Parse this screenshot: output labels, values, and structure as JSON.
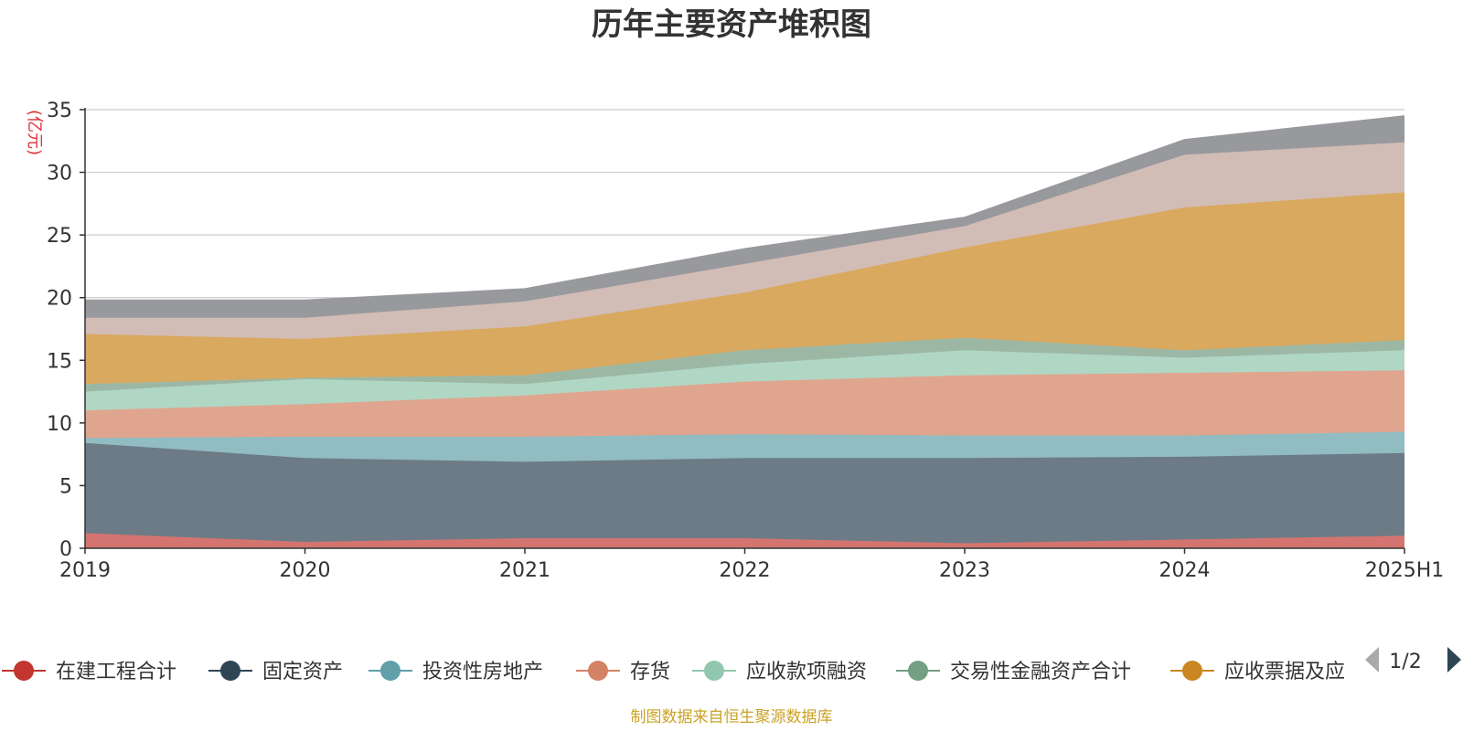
{
  "chart_data": {
    "type": "area",
    "stacked": true,
    "title": "历年主要资产堆积图",
    "unit_label": "(亿元)",
    "x": [
      "2019",
      "2020",
      "2021",
      "2022",
      "2023",
      "2024",
      "2025H1"
    ],
    "ylim": [
      0,
      35
    ],
    "yticks": [
      0,
      5,
      10,
      15,
      20,
      25,
      30,
      35
    ],
    "grid": true,
    "series": [
      {
        "name": "在建工程合计",
        "color": "#c23531",
        "area_color": "#d47470",
        "values": [
          1.2,
          0.5,
          0.8,
          0.8,
          0.4,
          0.7,
          1.0
        ]
      },
      {
        "name": "固定资产",
        "color": "#2f4554",
        "area_color": "#6d7b86",
        "values": [
          7.2,
          6.7,
          6.1,
          6.4,
          6.8,
          6.6,
          6.6
        ]
      },
      {
        "name": "投资性房地产",
        "color": "#61a0a8",
        "area_color": "#90bcc2",
        "values": [
          0.4,
          1.7,
          2.0,
          1.9,
          1.8,
          1.7,
          1.7
        ]
      },
      {
        "name": "存货",
        "color": "#d48265",
        "area_color": "#e0a58f",
        "values": [
          2.2,
          2.6,
          3.3,
          4.2,
          4.8,
          5.0,
          4.9
        ]
      },
      {
        "name": "应收款项融资",
        "color": "#91c7ae",
        "area_color": "#b0d7c4",
        "values": [
          1.5,
          2.0,
          0.9,
          1.4,
          2.0,
          1.2,
          1.6
        ]
      },
      {
        "name": "交易性金融资产合计",
        "color": "#749f83",
        "area_color": "#9cb8a5",
        "values": [
          0.6,
          0.1,
          0.7,
          1.1,
          1.0,
          0.6,
          0.8
        ]
      },
      {
        "name": "应收票据及应",
        "color": "#ca8622",
        "area_color": "#d9a95f",
        "values": [
          4.0,
          3.1,
          3.9,
          4.6,
          7.2,
          11.4,
          11.8
        ]
      },
      {
        "name": "",
        "color": "#bda29a",
        "area_color": "#d2bcb6",
        "values": [
          1.3,
          1.7,
          2.0,
          2.3,
          1.7,
          4.2,
          4.0
        ]
      },
      {
        "name": "",
        "color": "#6e7074",
        "area_color": "#98999d",
        "values": [
          1.4,
          1.4,
          1.0,
          1.2,
          0.7,
          1.2,
          2.1
        ]
      }
    ]
  },
  "legend": {
    "pager_text": "1/2"
  },
  "source_text": "制图数据来自恒生聚源数据库"
}
